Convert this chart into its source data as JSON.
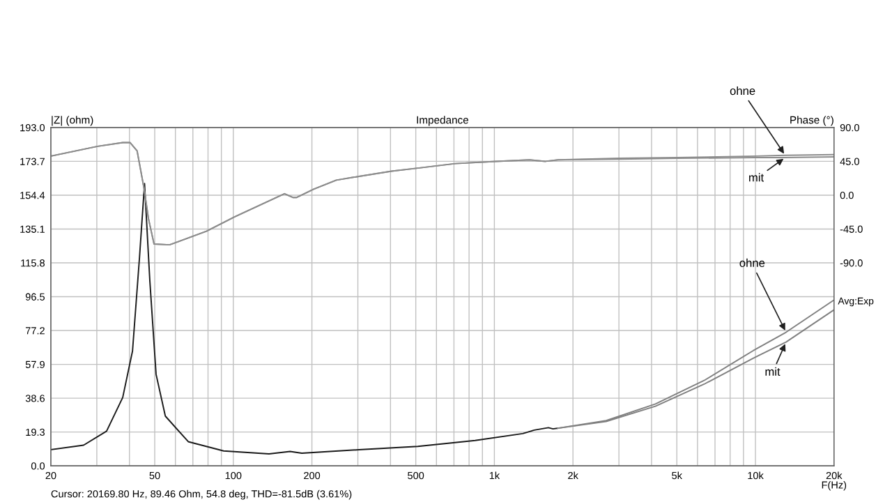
{
  "chart_data": {
    "type": "line",
    "title": "Impedance",
    "xlabel": "F(Hz)",
    "ylabel": "|Z| (ohm)",
    "y2label": "Phase (°)",
    "log": "x",
    "grid": true,
    "marker": "none",
    "line_style": "solid",
    "xlim": [
      20,
      20000
    ],
    "xticks": [
      20,
      {
        "value": 30,
        "label": null
      },
      {
        "value": 40,
        "label": null
      },
      50,
      {
        "value": 60,
        "label": null
      },
      {
        "value": 70,
        "label": null
      },
      {
        "value": 80,
        "label": null
      },
      {
        "value": 90,
        "label": null
      },
      100,
      200,
      {
        "value": 300,
        "label": null
      },
      {
        "value": 400,
        "label": null
      },
      500,
      {
        "value": 600,
        "label": null
      },
      {
        "value": 700,
        "label": null
      },
      {
        "value": 800,
        "label": null
      },
      {
        "value": 900,
        "label": null
      },
      {
        "value": 1000,
        "label": "1k"
      },
      {
        "value": 2000,
        "label": "2k"
      },
      {
        "value": 3000,
        "label": null
      },
      {
        "value": 4000,
        "label": null
      },
      {
        "value": 5000,
        "label": "5k"
      },
      {
        "value": 6000,
        "label": null
      },
      {
        "value": 7000,
        "label": null
      },
      {
        "value": 8000,
        "label": null
      },
      {
        "value": 9000,
        "label": null
      },
      {
        "value": 10000,
        "label": "10k"
      },
      {
        "value": 20000,
        "label": "20k"
      }
    ],
    "ylim": [
      0,
      193
    ],
    "yticks": [
      {
        "value": 0,
        "label": "0.0"
      },
      19.3,
      38.6,
      57.9,
      77.2,
      96.5,
      115.8,
      135.1,
      154.4,
      173.7,
      {
        "value": 193,
        "label": "193.0"
      }
    ],
    "y2lim": [
      -360,
      90
    ],
    "y2ticks": [
      {
        "value": -90,
        "label": "-90.0"
      },
      {
        "value": -45,
        "label": "-45.0"
      },
      {
        "value": 0,
        "label": "0.0"
      },
      {
        "value": 45,
        "label": "45.0"
      },
      {
        "value": 90,
        "label": "90.0"
      }
    ],
    "series": [
      {
        "color": "#1a1a1a",
        "x": [
          20,
          26.7,
          32.7,
          37.7,
          41.1,
          43.7,
          45.7,
          47.9,
          50.6,
          54.9,
          67.2,
          91.8,
          137,
          165,
          183,
          303,
          509,
          844,
          1284,
          1421,
          1611,
          1677,
          1750
        ],
        "values": [
          9.2,
          11.8,
          19.8,
          39,
          65.5,
          118.6,
          161,
          105.3,
          52.2,
          28.4,
          13.8,
          8.5,
          6.8,
          8.2,
          7.2,
          9.2,
          11.1,
          14.5,
          18.4,
          20.4,
          21.8,
          21.1,
          21.5
        ]
      },
      {
        "name": "ohne",
        "color": "#808080",
        "x": [
          1750,
          2679,
          4140,
          6360,
          9800,
          13100,
          20000
        ],
        "values": [
          21.5,
          25.8,
          35.3,
          48.7,
          65.7,
          76.2,
          94.6
        ]
      },
      {
        "name": "mit",
        "color": "#808080",
        "x": [
          1750,
          2679,
          4140,
          6360,
          9800,
          13100,
          20000
        ],
        "values": [
          21.5,
          25.3,
          34,
          46.6,
          61.4,
          70.6,
          89
        ]
      },
      {
        "name": "ohne",
        "color": "#8c8c8c",
        "axis": "y2",
        "x": [
          20,
          30.2,
          37.7,
          40.2,
          42.8,
          45.5,
          47.3,
          49.7,
          57,
          78.9,
          101,
          157,
          169,
          175,
          203,
          248,
          303,
          404,
          509,
          709,
          1014,
          1367,
          1571,
          1756,
          3000,
          5000,
          10000,
          13000,
          20000
        ],
        "values": [
          52,
          65,
          70,
          70,
          59,
          9,
          -31,
          -65,
          -66,
          -48,
          -29,
          2,
          -3,
          -3,
          8,
          20,
          25,
          32,
          36,
          42,
          45,
          47,
          45,
          47,
          49,
          50,
          52,
          53,
          54
        ]
      },
      {
        "name": "mit",
        "color": "#8c8c8c",
        "axis": "y2",
        "x": [
          20,
          30.2,
          37.7,
          40.2,
          42.8,
          45.5,
          47.3,
          49.7,
          57,
          78.9,
          101,
          157,
          169,
          175,
          203,
          248,
          303,
          404,
          509,
          709,
          1014,
          1367,
          1571,
          1756,
          3000,
          5000,
          10000,
          13000,
          20000
        ],
        "values": [
          52,
          65,
          70,
          70,
          59,
          9,
          -31,
          -65,
          -66,
          -48,
          -29,
          2,
          -3,
          -3,
          8,
          20,
          25,
          32,
          36,
          42,
          45,
          47,
          45,
          47,
          48,
          49,
          50,
          50,
          51
        ]
      }
    ],
    "annotations": [
      "Avg:Exp",
      "Cursor: 20169.80 Hz, 89.46 Ohm, 54.8 deg, THD=-81.5dB (3.61%)"
    ]
  }
}
